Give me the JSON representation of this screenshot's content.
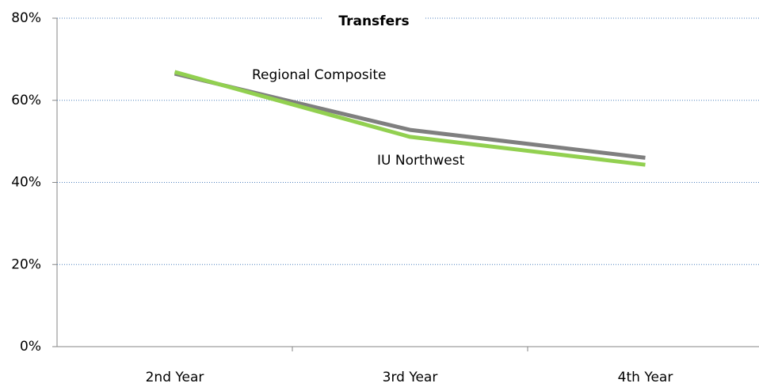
{
  "chart_data": {
    "type": "line",
    "title": "Transfers",
    "categories": [
      "2nd Year",
      "3rd Year",
      "4th Year"
    ],
    "series": [
      {
        "name": "Regional Composite",
        "color": "#7f7f7f",
        "label_color": "#000000",
        "values": [
          66.5,
          52.8,
          46.0
        ]
      },
      {
        "name": "IU Northwest",
        "color": "#92d050",
        "label_color": "#00b050",
        "values": [
          66.9,
          51.1,
          44.3
        ]
      }
    ],
    "ylim": [
      0,
      80
    ],
    "yticks": [
      {
        "value": 0,
        "label": "0%"
      },
      {
        "value": 20,
        "label": "20%"
      },
      {
        "value": 40,
        "label": "40%"
      },
      {
        "value": 60,
        "label": "60%"
      },
      {
        "value": 80,
        "label": "80%"
      }
    ],
    "grid": true
  }
}
